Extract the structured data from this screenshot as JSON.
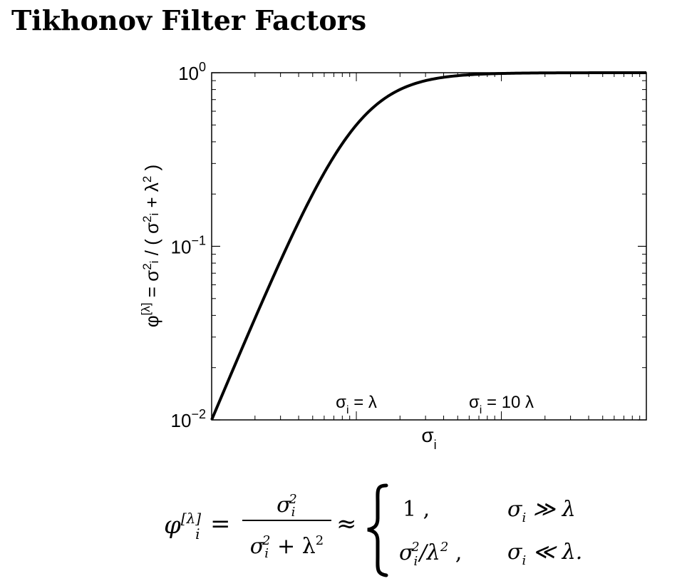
{
  "title": "Tikhonov Filter Factors",
  "chart_data": {
    "type": "line",
    "title": "",
    "xlabel": "σ_i",
    "ylabel": "φ^[λ] = σ_i^2 / ( σ_i^2 + λ^2 )",
    "y_scale": "log",
    "ylim": [
      0.01,
      1
    ],
    "yticks": [
      "10^0",
      "10^-1",
      "10^-2"
    ],
    "x_scale": "log",
    "x_range_sigma_over_lambda": [
      0.1005,
      100
    ],
    "x_tick_labels_shown": false,
    "grid": false,
    "legend": "none",
    "annotations": [
      {
        "text": "σi = λ",
        "at_sigma_over_lambda": 1
      },
      {
        "text": "σi = 10 λ",
        "at_sigma_over_lambda": 10
      }
    ],
    "series": [
      {
        "color": "#000000",
        "function": "x^2 / (x^2 + 1), x = σ_i / λ",
        "x": [
          0.1005,
          0.15,
          0.2,
          0.3,
          0.5,
          0.7,
          1,
          1.5,
          2,
          3,
          5,
          10,
          20,
          50,
          100
        ],
        "y": [
          0.01,
          0.022,
          0.038,
          0.083,
          0.2,
          0.329,
          0.5,
          0.692,
          0.8,
          0.9,
          0.962,
          0.99,
          0.9975,
          0.9996,
          0.9999
        ]
      }
    ]
  },
  "formula": {
    "lhs_symbol": "φ",
    "lhs_sup": "[λ]",
    "lhs_sub": "i",
    "equals": "=",
    "numerator": "σ",
    "numerator_sub": "i",
    "numerator_sup": "2",
    "denominator": "σ",
    "denominator_sub": "i",
    "denominator_sup": "2",
    "denominator_rest": " + λ",
    "denominator_rest_sup": "2",
    "approx": "≈",
    "case1_value": "1 ,",
    "case1_condition": "σ",
    "case1_condition_sub": "i",
    "case1_condition_rest": " ≫ λ",
    "case2_value": "σ",
    "case2_value_sub": "i",
    "case2_value_sup": "2",
    "case2_value_rest": "/λ",
    "case2_value_rest_sup": "2",
    "case2_value_tail": " ,",
    "case2_condition": "σ",
    "case2_condition_sub": "i",
    "case2_condition_rest": " ≪ λ."
  }
}
